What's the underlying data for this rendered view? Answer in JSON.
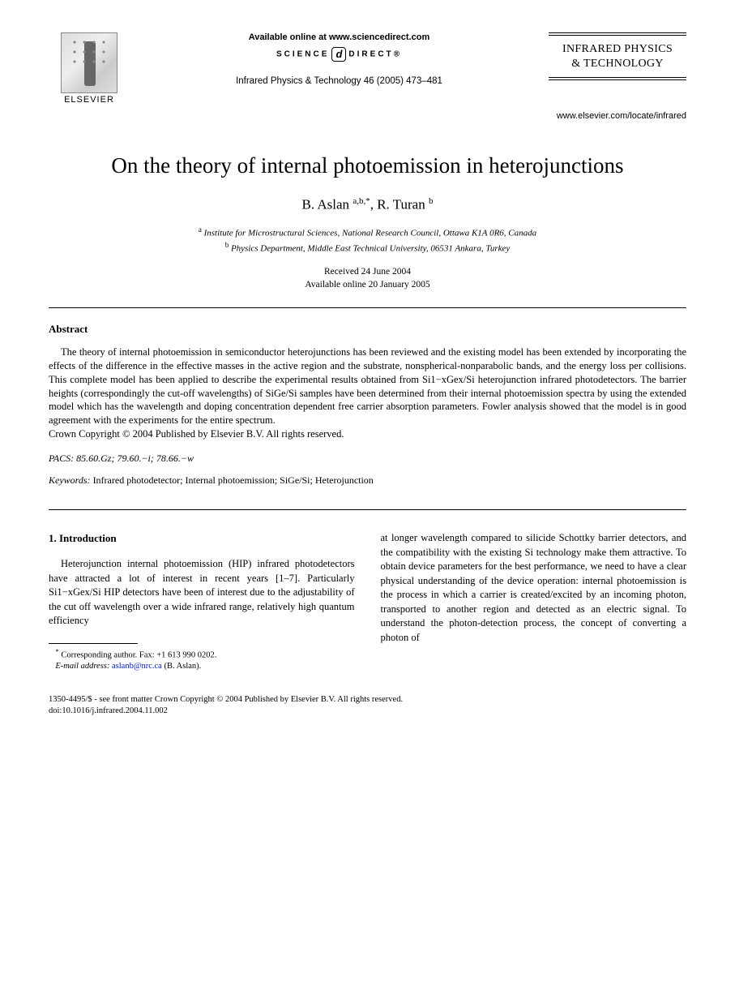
{
  "header": {
    "elsevier_label": "ELSEVIER",
    "available_online": "Available online at www.sciencedirect.com",
    "science_direct_left": "SCIENCE",
    "science_direct_right": "DIRECT®",
    "journal_ref": "Infrared Physics & Technology 46 (2005) 473–481",
    "journal_name_line1": "INFRARED PHYSICS",
    "journal_name_line2": "& TECHNOLOGY",
    "locate_url": "www.elsevier.com/locate/infrared"
  },
  "title": "On the theory of internal photoemission in heterojunctions",
  "authors": {
    "a1_name": "B. Aslan",
    "a1_sup": "a,b,*",
    "a2_name": "R. Turan",
    "a2_sup": "b"
  },
  "affiliations": {
    "a": "Institute for Microstructural Sciences, National Research Council, Ottawa K1A 0R6, Canada",
    "b": "Physics Department, Middle East Technical University, 06531 Ankara, Turkey"
  },
  "dates": {
    "received": "Received 24 June 2004",
    "online": "Available online 20 January 2005"
  },
  "abstract": {
    "heading": "Abstract",
    "text": "The theory of internal photoemission in semiconductor heterojunctions has been reviewed and the existing model has been extended by incorporating the effects of the difference in the effective masses in the active region and the substrate, nonspherical-nonparabolic bands, and the energy loss per collisions. This complete model has been applied to describe the experimental results obtained from Si1−xGex/Si heterojunction infrared photodetectors. The barrier heights (correspondingly the cut-off wavelengths) of SiGe/Si samples have been determined from their internal photoemission spectra by using the extended model which has the wavelength and doping concentration dependent free carrier absorption parameters. Fowler analysis showed that the model is in good agreement with the experiments for the entire spectrum.",
    "copyright": "Crown Copyright © 2004 Published by Elsevier B.V. All rights reserved."
  },
  "pacs": {
    "label": "PACS:",
    "codes": "85.60.Gz; 79.60.−i; 78.66.−w"
  },
  "keywords": {
    "label": "Keywords:",
    "text": "Infrared photodetector; Internal photoemission; SiGe/Si; Heterojunction"
  },
  "body": {
    "section_heading": "1. Introduction",
    "col1_text": "Heterojunction internal photoemission (HIP) infrared photodetectors have attracted a lot of interest in recent years [1–7]. Particularly Si1−xGex/Si HIP detectors have been of interest due to the adjustability of the cut off wavelength over a wide infrared range, relatively high quantum efficiency",
    "col2_text": "at longer wavelength compared to silicide Schottky barrier detectors, and the compatibility with the existing Si technology make them attractive. To obtain device parameters for the best performance, we need to have a clear physical understanding of the device operation: internal photoemission is the process in which a carrier is created/excited by an incoming photon, transported to another region and detected as an electric signal. To understand the photon-detection process, the concept of converting a photon of"
  },
  "footnote": {
    "corr": "Corresponding author. Fax: +1 613 990 0202.",
    "email_label": "E-mail address:",
    "email": "aslanb@nrc.ca",
    "email_name": "(B. Aslan)."
  },
  "footer": {
    "line1": "1350-4495/$ - see front matter  Crown Copyright © 2004 Published by Elsevier B.V. All rights reserved.",
    "line2": "doi:10.1016/j.infrared.2004.11.002"
  }
}
